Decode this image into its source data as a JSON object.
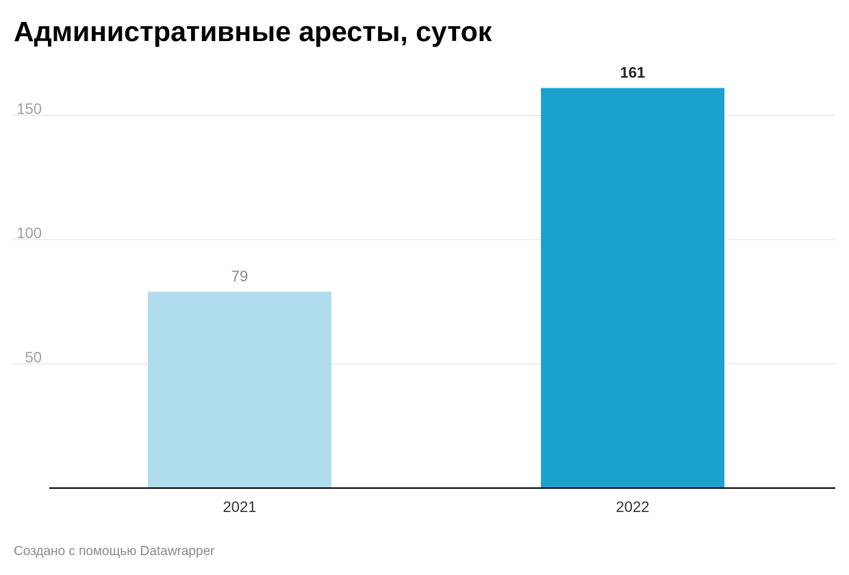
{
  "chart_data": {
    "type": "bar",
    "title": "Административные аресты, суток",
    "xlabel": "",
    "ylabel": "",
    "categories": [
      "2021",
      "2022"
    ],
    "values": [
      79,
      161
    ],
    "value_labels": [
      "79",
      "161"
    ],
    "ylim": [
      0,
      165
    ],
    "yticks": [
      50,
      100,
      150
    ],
    "ytick_labels": [
      "50",
      "100",
      "150"
    ],
    "grid": true,
    "legend": "none",
    "bar_colors": [
      "#afdded",
      "#1aa1ce"
    ],
    "value_label_colors": [
      "#888888",
      "#222222"
    ],
    "value_label_bold": [
      false,
      true
    ]
  },
  "footer": {
    "credit": "Создано с помощью Datawrapper"
  },
  "colors": {
    "grid": "#e0e0e0",
    "axis": "#000000"
  }
}
